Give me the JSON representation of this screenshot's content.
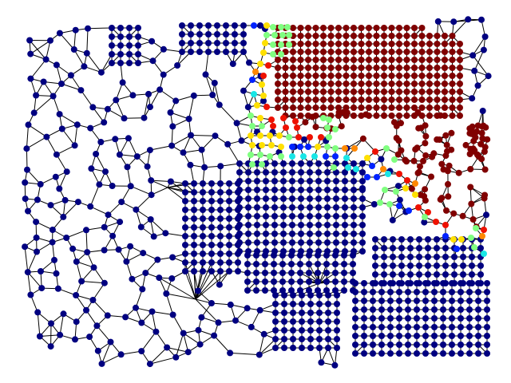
{
  "graph": {
    "layout": "mesh-network",
    "node_marker": "filled-circle",
    "edge_color": "#000000",
    "colormap": "jet",
    "background": "#ffffff",
    "colors": {
      "navy": "#000080",
      "blue": "#0022ff",
      "cyan": "#19e6e6",
      "green": "#80ff80",
      "yellow": "#ffe000",
      "orange": "#ff8800",
      "red": "#ee1100",
      "maroon": "#800000"
    },
    "clusters": [
      {
        "name": "navy-bulk",
        "color": "navy"
      },
      {
        "name": "maroon-region",
        "color": "maroon"
      },
      {
        "name": "boundary-band",
        "color": "mixed-jet"
      }
    ]
  }
}
